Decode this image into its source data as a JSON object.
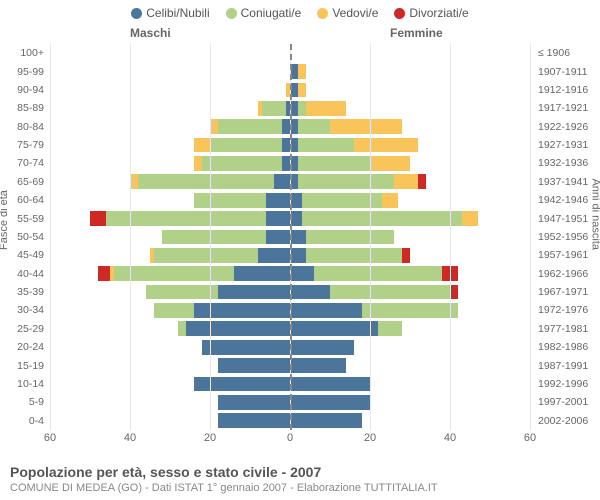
{
  "chart": {
    "type": "population-pyramid",
    "background_color": "#ffffff",
    "grid_color": "#e8e8e8",
    "center_line_color": "#888888",
    "text_color": "#666666",
    "title": "Popolazione per età, sesso e stato civile - 2007",
    "subtitle": "COMUNE DI MEDEA (GO) - Dati ISTAT 1° gennaio 2007 - Elaborazione TUTTITALIA.IT",
    "title_fontsize": 14,
    "subtitle_fontsize": 11,
    "label_fontsize": 10.5,
    "gender_left": "Maschi",
    "gender_right": "Femmine",
    "y_axis_left_title": "Fasce di età",
    "y_axis_right_title": "Anni di nascita",
    "xlim": 60,
    "x_ticks": [
      60,
      40,
      20,
      0,
      20,
      40,
      60
    ],
    "x_tick_positions": [
      0,
      16.67,
      33.33,
      50,
      66.67,
      83.33,
      100
    ],
    "categories": [
      {
        "key": "celibi",
        "label": "Celibi/Nubili",
        "color": "#4b759b"
      },
      {
        "key": "coniugati",
        "label": "Coniugati/e",
        "color": "#b1d088"
      },
      {
        "key": "vedovi",
        "label": "Vedovi/e",
        "color": "#f9c55a"
      },
      {
        "key": "divorziati",
        "label": "Divorziati/e",
        "color": "#cf2926"
      }
    ],
    "rows": [
      {
        "age": "100+",
        "birth": "≤ 1906",
        "m": {
          "celibi": 0,
          "coniugati": 0,
          "vedovi": 0,
          "divorziati": 0
        },
        "f": {
          "celibi": 0,
          "coniugati": 0,
          "vedovi": 0,
          "divorziati": 0
        }
      },
      {
        "age": "95-99",
        "birth": "1907-1911",
        "m": {
          "celibi": 0,
          "coniugati": 0,
          "vedovi": 0,
          "divorziati": 0
        },
        "f": {
          "celibi": 2,
          "coniugati": 0,
          "vedovi": 2,
          "divorziati": 0
        }
      },
      {
        "age": "90-94",
        "birth": "1912-1916",
        "m": {
          "celibi": 0,
          "coniugati": 0,
          "vedovi": 1,
          "divorziati": 0
        },
        "f": {
          "celibi": 2,
          "coniugati": 0,
          "vedovi": 2,
          "divorziati": 0
        }
      },
      {
        "age": "85-89",
        "birth": "1917-1921",
        "m": {
          "celibi": 1,
          "coniugati": 6,
          "vedovi": 1,
          "divorziati": 0
        },
        "f": {
          "celibi": 2,
          "coniugati": 2,
          "vedovi": 10,
          "divorziati": 0
        }
      },
      {
        "age": "80-84",
        "birth": "1922-1926",
        "m": {
          "celibi": 2,
          "coniugati": 16,
          "vedovi": 2,
          "divorziati": 0
        },
        "f": {
          "celibi": 2,
          "coniugati": 8,
          "vedovi": 18,
          "divorziati": 0
        }
      },
      {
        "age": "75-79",
        "birth": "1927-1931",
        "m": {
          "celibi": 2,
          "coniugati": 18,
          "vedovi": 4,
          "divorziati": 0
        },
        "f": {
          "celibi": 2,
          "coniugati": 14,
          "vedovi": 16,
          "divorziati": 0
        }
      },
      {
        "age": "70-74",
        "birth": "1932-1936",
        "m": {
          "celibi": 2,
          "coniugati": 20,
          "vedovi": 2,
          "divorziati": 0
        },
        "f": {
          "celibi": 2,
          "coniugati": 18,
          "vedovi": 10,
          "divorziati": 0
        }
      },
      {
        "age": "65-69",
        "birth": "1937-1941",
        "m": {
          "celibi": 4,
          "coniugati": 34,
          "vedovi": 2,
          "divorziati": 0
        },
        "f": {
          "celibi": 2,
          "coniugati": 24,
          "vedovi": 6,
          "divorziati": 2
        }
      },
      {
        "age": "60-64",
        "birth": "1942-1946",
        "m": {
          "celibi": 6,
          "coniugati": 18,
          "vedovi": 0,
          "divorziati": 0
        },
        "f": {
          "celibi": 3,
          "coniugati": 20,
          "vedovi": 4,
          "divorziati": 0
        }
      },
      {
        "age": "55-59",
        "birth": "1947-1951",
        "m": {
          "celibi": 6,
          "coniugati": 40,
          "vedovi": 0,
          "divorziati": 4
        },
        "f": {
          "celibi": 3,
          "coniugati": 40,
          "vedovi": 4,
          "divorziati": 0
        }
      },
      {
        "age": "50-54",
        "birth": "1952-1956",
        "m": {
          "celibi": 6,
          "coniugati": 26,
          "vedovi": 0,
          "divorziati": 0
        },
        "f": {
          "celibi": 4,
          "coniugati": 22,
          "vedovi": 0,
          "divorziati": 0
        }
      },
      {
        "age": "45-49",
        "birth": "1957-1961",
        "m": {
          "celibi": 8,
          "coniugati": 26,
          "vedovi": 1,
          "divorziati": 0
        },
        "f": {
          "celibi": 4,
          "coniugati": 24,
          "vedovi": 0,
          "divorziati": 2
        }
      },
      {
        "age": "40-44",
        "birth": "1962-1966",
        "m": {
          "celibi": 14,
          "coniugati": 30,
          "vedovi": 1,
          "divorziati": 3
        },
        "f": {
          "celibi": 6,
          "coniugati": 32,
          "vedovi": 0,
          "divorziati": 4
        }
      },
      {
        "age": "35-39",
        "birth": "1967-1971",
        "m": {
          "celibi": 18,
          "coniugati": 18,
          "vedovi": 0,
          "divorziati": 0
        },
        "f": {
          "celibi": 10,
          "coniugati": 30,
          "vedovi": 0,
          "divorziati": 2
        }
      },
      {
        "age": "30-34",
        "birth": "1972-1976",
        "m": {
          "celibi": 24,
          "coniugati": 10,
          "vedovi": 0,
          "divorziati": 0
        },
        "f": {
          "celibi": 18,
          "coniugati": 24,
          "vedovi": 0,
          "divorziati": 0
        }
      },
      {
        "age": "25-29",
        "birth": "1977-1981",
        "m": {
          "celibi": 26,
          "coniugati": 2,
          "vedovi": 0,
          "divorziati": 0
        },
        "f": {
          "celibi": 22,
          "coniugati": 6,
          "vedovi": 0,
          "divorziati": 0
        }
      },
      {
        "age": "20-24",
        "birth": "1982-1986",
        "m": {
          "celibi": 22,
          "coniugati": 0,
          "vedovi": 0,
          "divorziati": 0
        },
        "f": {
          "celibi": 16,
          "coniugati": 0,
          "vedovi": 0,
          "divorziati": 0
        }
      },
      {
        "age": "15-19",
        "birth": "1987-1991",
        "m": {
          "celibi": 18,
          "coniugati": 0,
          "vedovi": 0,
          "divorziati": 0
        },
        "f": {
          "celibi": 14,
          "coniugati": 0,
          "vedovi": 0,
          "divorziati": 0
        }
      },
      {
        "age": "10-14",
        "birth": "1992-1996",
        "m": {
          "celibi": 24,
          "coniugati": 0,
          "vedovi": 0,
          "divorziati": 0
        },
        "f": {
          "celibi": 20,
          "coniugati": 0,
          "vedovi": 0,
          "divorziati": 0
        }
      },
      {
        "age": "5-9",
        "birth": "1997-2001",
        "m": {
          "celibi": 18,
          "coniugati": 0,
          "vedovi": 0,
          "divorziati": 0
        },
        "f": {
          "celibi": 20,
          "coniugati": 0,
          "vedovi": 0,
          "divorziati": 0
        }
      },
      {
        "age": "0-4",
        "birth": "2002-2006",
        "m": {
          "celibi": 18,
          "coniugati": 0,
          "vedovi": 0,
          "divorziati": 0
        },
        "f": {
          "celibi": 18,
          "coniugati": 0,
          "vedovi": 0,
          "divorziati": 0
        }
      }
    ]
  }
}
